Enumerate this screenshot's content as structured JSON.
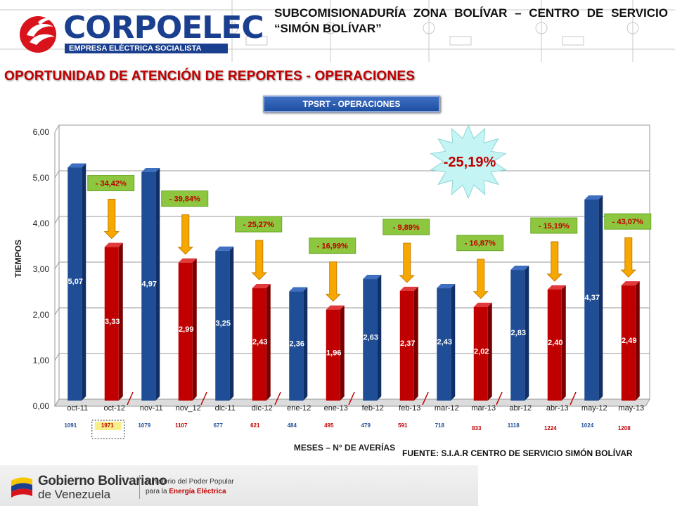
{
  "header": {
    "logo_word": "CORPOELEC",
    "logo_sub": "EMPRESA ELÉCTRICA SOCIALISTA",
    "subtitle": "SUBCOMISIONADURÍA ZONA BOLÍVAR – CENTRO DE SERVICIO “SIMÓN BOLÍVAR”",
    "main_title": "OPORTUNIDAD DE ATENCIÓN DE REPORTES - OPERACIONES"
  },
  "chart_data": {
    "type": "bar",
    "title": "TPSRT - OPERACIONES",
    "ylabel": "TIEMPOS",
    "xlabel": "MESES – N° DE AVERÍAS",
    "ylim": [
      0,
      6
    ],
    "yticks": [
      "0,00",
      "1,00",
      "2,00",
      "3,00",
      "4,00",
      "5,00",
      "6,00"
    ],
    "categories": [
      "oct-11",
      "oct-12",
      "nov-11",
      "nov_12",
      "dic-11",
      "dic-12",
      "ene-12",
      "ene-13",
      "feb-12",
      "feb-13",
      "mar-12",
      "mar-13",
      "abr-12",
      "abr-13",
      "may-12",
      "may-13"
    ],
    "values": [
      5.07,
      3.33,
      4.97,
      2.99,
      3.25,
      2.43,
      2.36,
      1.96,
      2.63,
      2.37,
      2.43,
      2.02,
      2.83,
      2.4,
      4.37,
      2.49
    ],
    "value_labels": [
      "5,07",
      "3,33",
      "4,97",
      "2,99",
      "3,25",
      "2,43",
      "2,36",
      "1,96",
      "2,63",
      "2,37",
      "2,43",
      "2,02",
      "2,83",
      "2,40",
      "4,37",
      "2,49"
    ],
    "averias": [
      "1091",
      "1971",
      "1079",
      "1107",
      "677",
      "621",
      "484",
      "495",
      "479",
      "591",
      "718",
      "833",
      "1118",
      "1224",
      "1024",
      "1208"
    ],
    "changes": [
      "- 34,42%",
      "- 39,84%",
      "- 25,27%",
      "- 16,99%",
      "- 9,89%",
      "- 16,87%",
      "- 15,19%",
      "- 43,07%"
    ],
    "overall_change": "-25,19%",
    "colors": {
      "year_2011_12": "#1f4e96",
      "year_2012_13": "#c00000",
      "change_box": "#8dc63f",
      "arrow": "#f6a800",
      "starburst": "#c5f4f4"
    }
  },
  "footer": {
    "source": "FUENTE: S.I.A.R CENTRO DE SERVICIO SIMÓN BOLÍVAR",
    "gob_line1": "Gobierno Bolivariano",
    "gob_line2": "de Venezuela",
    "ministry_line1": "Ministerio del Poder Popular",
    "ministry_line2_a": "para la ",
    "ministry_line2_b": "Energía Eléctrica"
  }
}
